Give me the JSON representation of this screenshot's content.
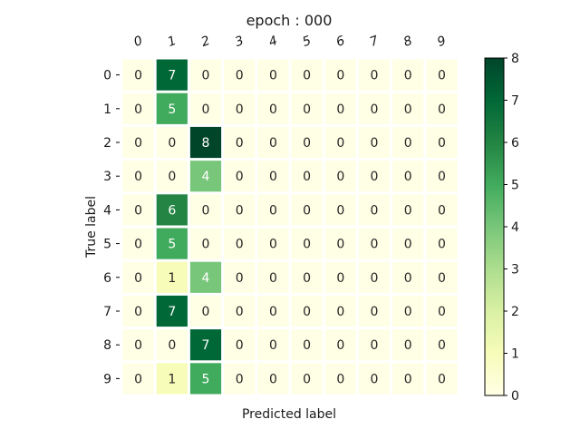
{
  "chart_data": {
    "type": "heatmap",
    "title": "epoch : 000",
    "xlabel": "Predicted label",
    "ylabel": "True label",
    "x_ticks": [
      "0",
      "1",
      "2",
      "3",
      "4",
      "5",
      "6",
      "7",
      "8",
      "9"
    ],
    "y_ticks": [
      "0",
      "1",
      "2",
      "3",
      "4",
      "5",
      "6",
      "7",
      "8",
      "9"
    ],
    "matrix": [
      [
        0,
        7,
        0,
        0,
        0,
        0,
        0,
        0,
        0,
        0
      ],
      [
        0,
        5,
        0,
        0,
        0,
        0,
        0,
        0,
        0,
        0
      ],
      [
        0,
        0,
        8,
        0,
        0,
        0,
        0,
        0,
        0,
        0
      ],
      [
        0,
        0,
        4,
        0,
        0,
        0,
        0,
        0,
        0,
        0
      ],
      [
        0,
        6,
        0,
        0,
        0,
        0,
        0,
        0,
        0,
        0
      ],
      [
        0,
        5,
        0,
        0,
        0,
        0,
        0,
        0,
        0,
        0
      ],
      [
        0,
        1,
        4,
        0,
        0,
        0,
        0,
        0,
        0,
        0
      ],
      [
        0,
        7,
        0,
        0,
        0,
        0,
        0,
        0,
        0,
        0
      ],
      [
        0,
        0,
        7,
        0,
        0,
        0,
        0,
        0,
        0,
        0
      ],
      [
        0,
        1,
        5,
        0,
        0,
        0,
        0,
        0,
        0,
        0
      ]
    ],
    "colorbar": {
      "colormap": "YlGn",
      "range": [
        0,
        8
      ],
      "ticks": [
        "0",
        "1",
        "2",
        "3",
        "4",
        "5",
        "6",
        "7",
        "8"
      ]
    },
    "x_tick_position": "top",
    "x_tick_rotation": "italic-slanted",
    "grid": false,
    "cell_separator_color": "#ffffff",
    "annotation_color_light": "#ffffff",
    "annotation_color_dark": "#262626"
  }
}
